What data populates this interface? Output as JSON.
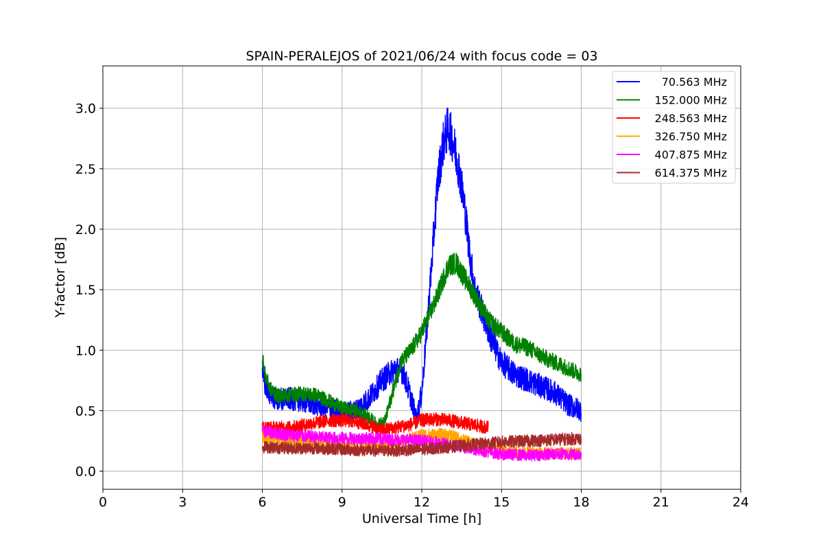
{
  "chart_data": {
    "type": "line",
    "title": "SPAIN-PERALEJOS of 2021/06/24 with focus code = 03",
    "xlabel": "Universal Time [h]",
    "ylabel": "Y-factor [dB]",
    "xlim": [
      0,
      24
    ],
    "ylim": [
      -0.15,
      3.35
    ],
    "xticks": [
      0,
      3,
      6,
      9,
      12,
      15,
      18,
      21,
      24
    ],
    "yticks": [
      0.0,
      0.5,
      1.0,
      1.5,
      2.0,
      2.5,
      3.0
    ],
    "xtick_labels": [
      "0",
      "3",
      "6",
      "9",
      "12",
      "15",
      "18",
      "21",
      "24"
    ],
    "ytick_labels": [
      "0.0",
      "0.5",
      "1.0",
      "1.5",
      "2.0",
      "2.5",
      "3.0"
    ],
    "grid": true,
    "legend_position": "top-right",
    "series": [
      {
        "name": "70.563 MHz",
        "color": "#0000ff",
        "noise": 0.07,
        "x": [
          6.0,
          6.2,
          6.5,
          7.0,
          7.5,
          8.0,
          8.5,
          9.0,
          9.5,
          10.0,
          10.5,
          11.0,
          11.3,
          11.6,
          11.8,
          12.0,
          12.2,
          12.4,
          12.6,
          12.8,
          13.0,
          13.2,
          13.4,
          13.6,
          13.8,
          14.0,
          14.3,
          14.6,
          15.0,
          15.5,
          16.0,
          16.5,
          17.0,
          17.5,
          18.0
        ],
        "y": [
          0.8,
          0.65,
          0.6,
          0.6,
          0.58,
          0.55,
          0.52,
          0.48,
          0.5,
          0.6,
          0.75,
          0.85,
          0.82,
          0.6,
          0.42,
          0.65,
          1.2,
          1.8,
          2.4,
          2.7,
          2.85,
          2.7,
          2.5,
          2.2,
          1.8,
          1.5,
          1.3,
          1.1,
          0.9,
          0.8,
          0.75,
          0.7,
          0.65,
          0.55,
          0.5
        ]
      },
      {
        "name": "152.000 MHz",
        "color": "#008000",
        "noise": 0.045,
        "x": [
          6.0,
          6.1,
          6.3,
          6.6,
          7.0,
          7.5,
          8.0,
          8.5,
          9.0,
          9.5,
          10.0,
          10.3,
          10.6,
          10.9,
          11.2,
          11.6,
          12.0,
          12.5,
          13.0,
          13.3,
          13.6,
          14.0,
          14.5,
          15.0,
          15.5,
          16.0,
          16.5,
          17.0,
          17.5,
          18.0
        ],
        "y": [
          0.95,
          0.8,
          0.68,
          0.62,
          0.63,
          0.64,
          0.63,
          0.58,
          0.52,
          0.5,
          0.45,
          0.38,
          0.4,
          0.65,
          0.9,
          1.0,
          1.15,
          1.4,
          1.7,
          1.72,
          1.6,
          1.45,
          1.25,
          1.15,
          1.05,
          1.02,
          0.95,
          0.9,
          0.85,
          0.8
        ]
      },
      {
        "name": "248.563 MHz",
        "color": "#ff0000",
        "noise": 0.045,
        "x": [
          6.0,
          6.5,
          7.0,
          7.5,
          8.0,
          8.5,
          9.0,
          9.5,
          10.0,
          10.5,
          11.0,
          11.5,
          12.0,
          12.5,
          13.0,
          13.5,
          14.0,
          14.5
        ],
        "y": [
          0.36,
          0.36,
          0.36,
          0.38,
          0.4,
          0.42,
          0.42,
          0.41,
          0.38,
          0.34,
          0.36,
          0.38,
          0.42,
          0.43,
          0.42,
          0.4,
          0.38,
          0.36
        ]
      },
      {
        "name": "326.750 MHz",
        "color": "#ffa500",
        "noise": 0.045,
        "x": [
          6.0,
          7.0,
          8.0,
          9.0,
          10.0,
          11.0,
          12.0,
          13.0,
          14.0,
          15.0,
          16.0,
          17.0,
          18.0
        ],
        "y": [
          0.28,
          0.25,
          0.22,
          0.2,
          0.2,
          0.22,
          0.3,
          0.3,
          0.22,
          0.17,
          0.15,
          0.15,
          0.15
        ]
      },
      {
        "name": "407.875 MHz",
        "color": "#ff00ff",
        "noise": 0.045,
        "x": [
          6.0,
          7.0,
          8.0,
          9.0,
          10.0,
          11.0,
          12.0,
          13.0,
          14.0,
          15.0,
          16.0,
          17.0,
          18.0
        ],
        "y": [
          0.33,
          0.3,
          0.28,
          0.27,
          0.27,
          0.26,
          0.25,
          0.22,
          0.18,
          0.14,
          0.13,
          0.14,
          0.14
        ]
      },
      {
        "name": "614.375 MHz",
        "color": "#a52a2a",
        "noise": 0.045,
        "x": [
          6.0,
          7.0,
          8.0,
          9.0,
          10.0,
          11.0,
          12.0,
          13.0,
          14.0,
          15.0,
          16.0,
          17.0,
          18.0
        ],
        "y": [
          0.2,
          0.19,
          0.19,
          0.18,
          0.17,
          0.17,
          0.18,
          0.2,
          0.22,
          0.24,
          0.25,
          0.26,
          0.27
        ]
      }
    ]
  }
}
